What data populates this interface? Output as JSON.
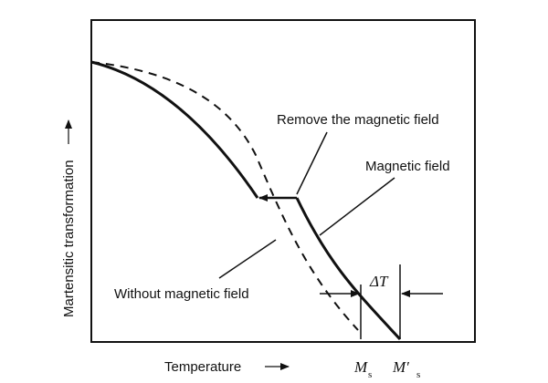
{
  "diagram": {
    "y_axis_label": "Martensitic transformation",
    "x_axis_label": "Temperature",
    "annotations": {
      "remove_field": "Remove the magnetic field",
      "with_field": "Magnetic field",
      "without_field": "Without magnetic field",
      "delta_t": "ΔT"
    },
    "temperature_marks": [
      {
        "symbol": "M",
        "subscript": "s"
      },
      {
        "symbol": "M′",
        "subscript": "s"
      }
    ]
  }
}
